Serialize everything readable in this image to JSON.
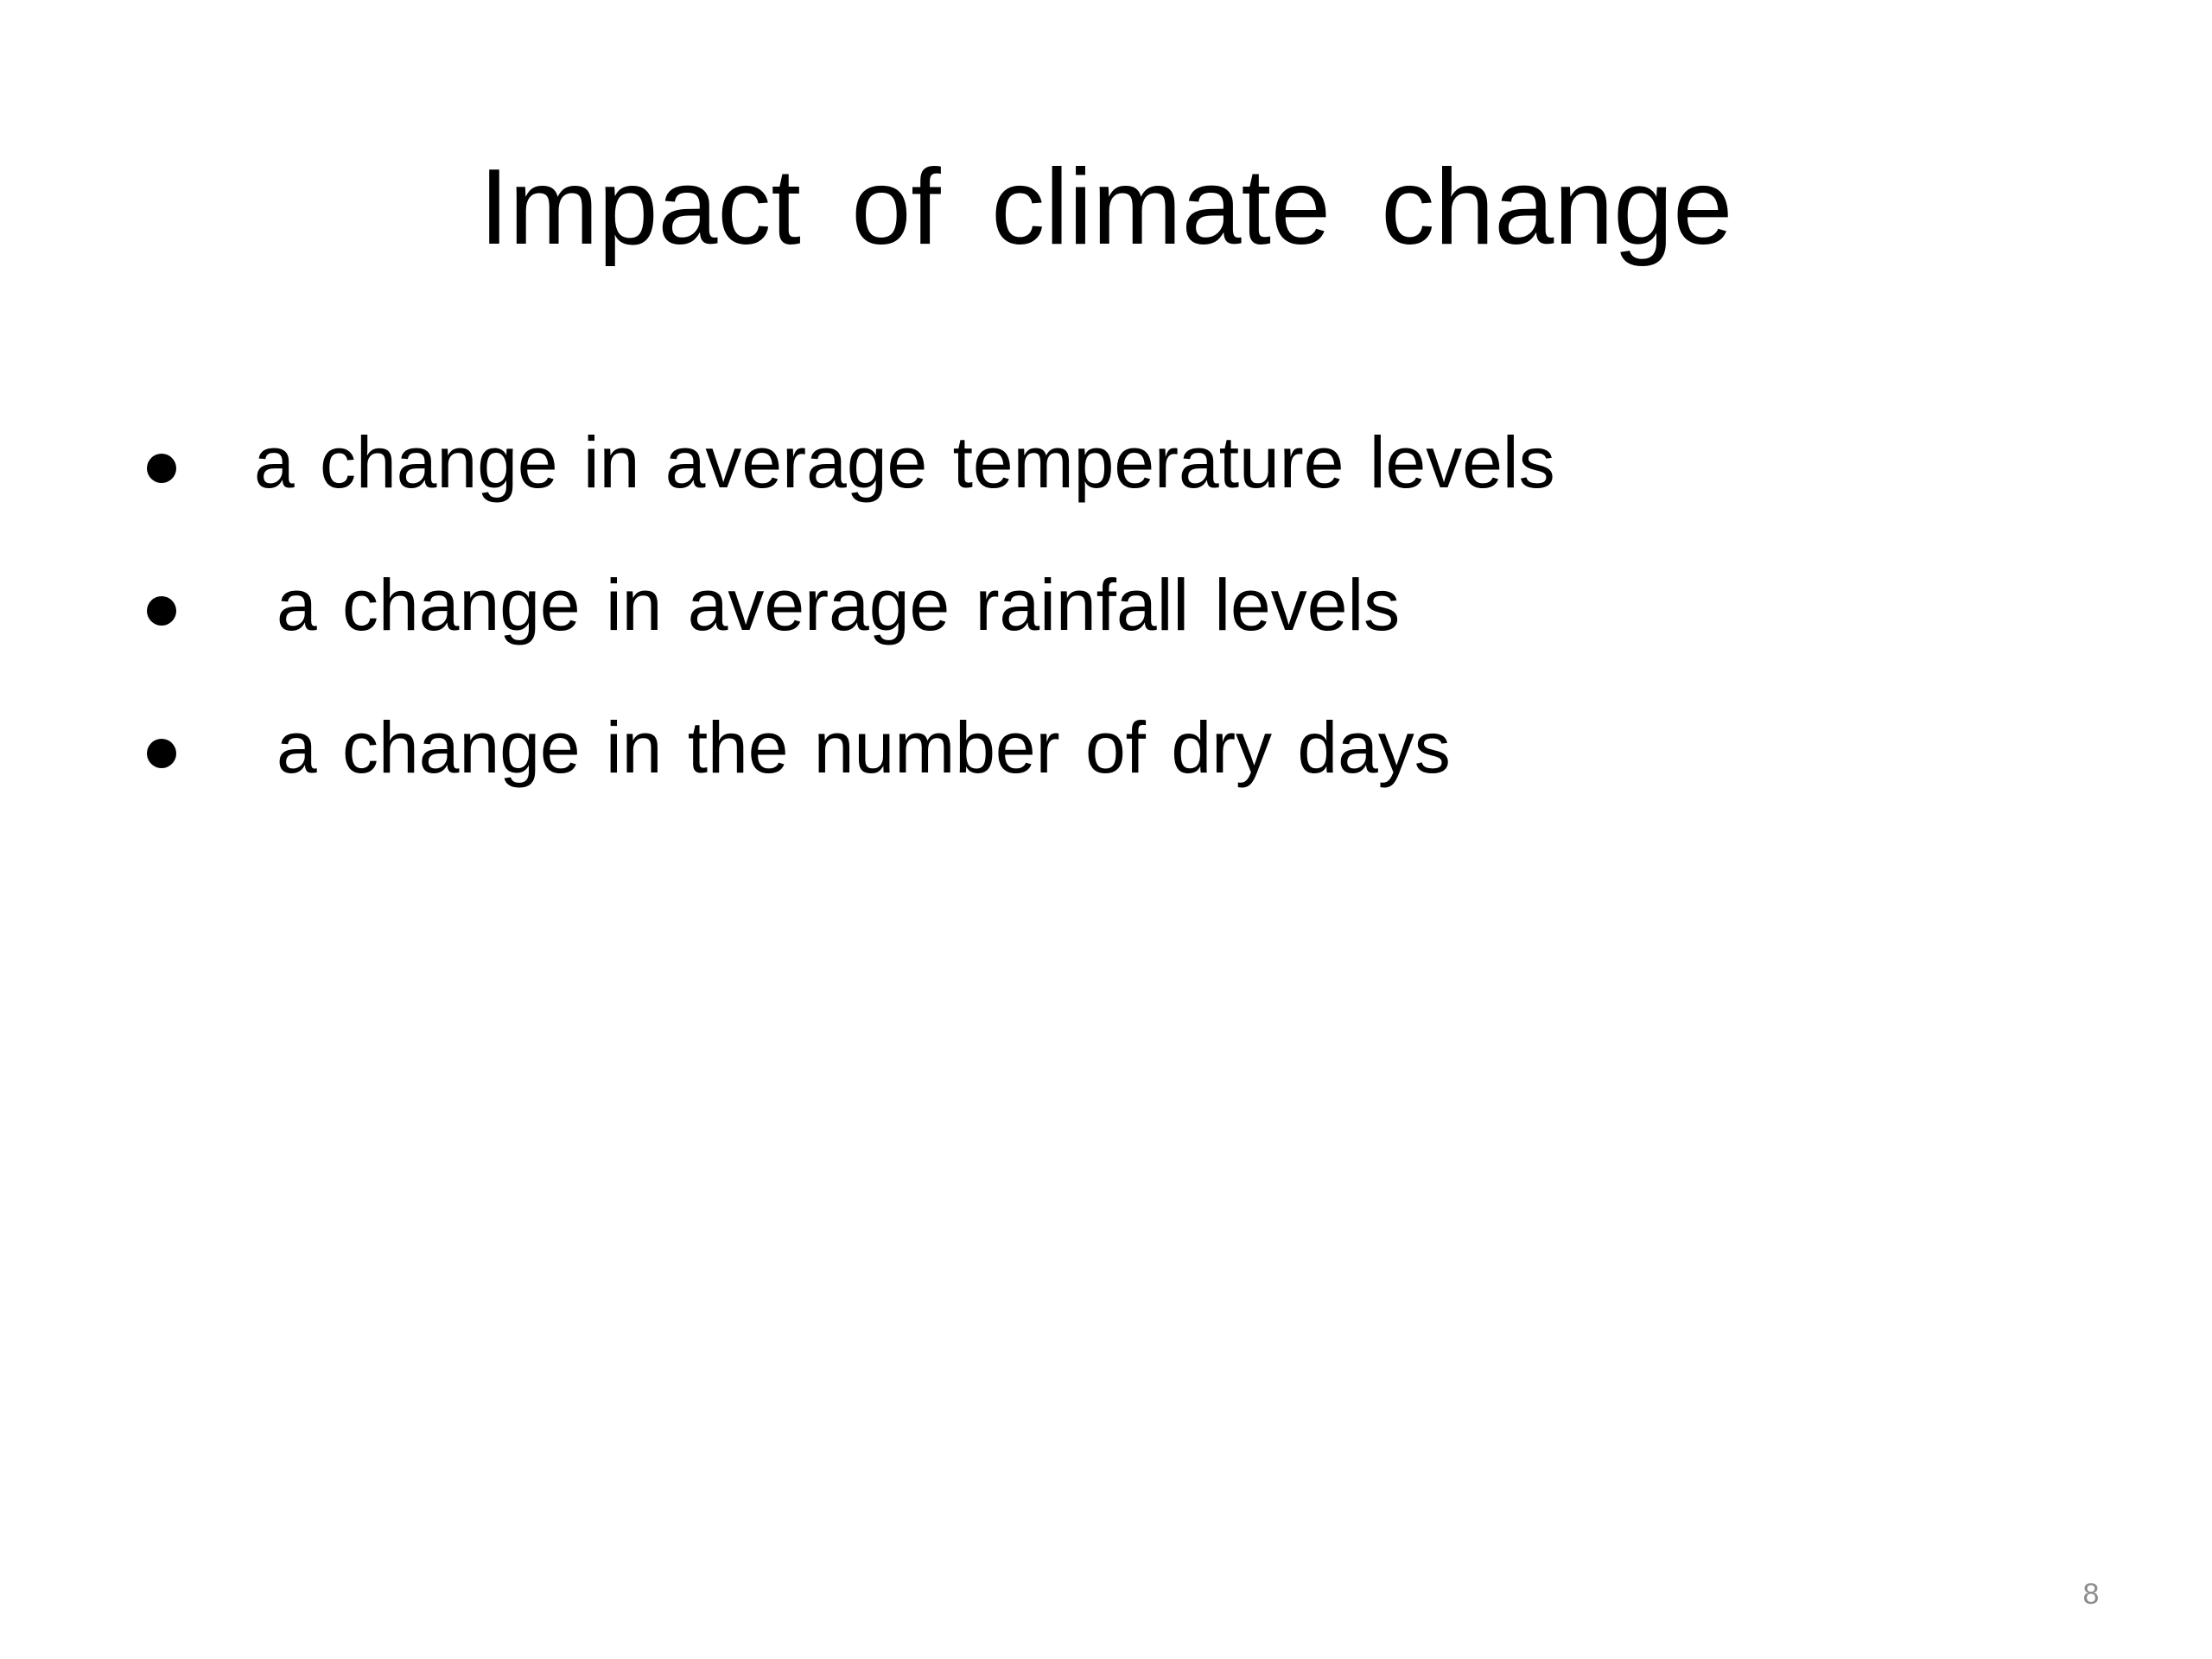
{
  "slide": {
    "title": "Impact of climate change",
    "bullets": [
      "a change in average temperature levels",
      "a change in average rainfall levels",
      "a change in the number of dry days"
    ],
    "page_number": "8"
  }
}
